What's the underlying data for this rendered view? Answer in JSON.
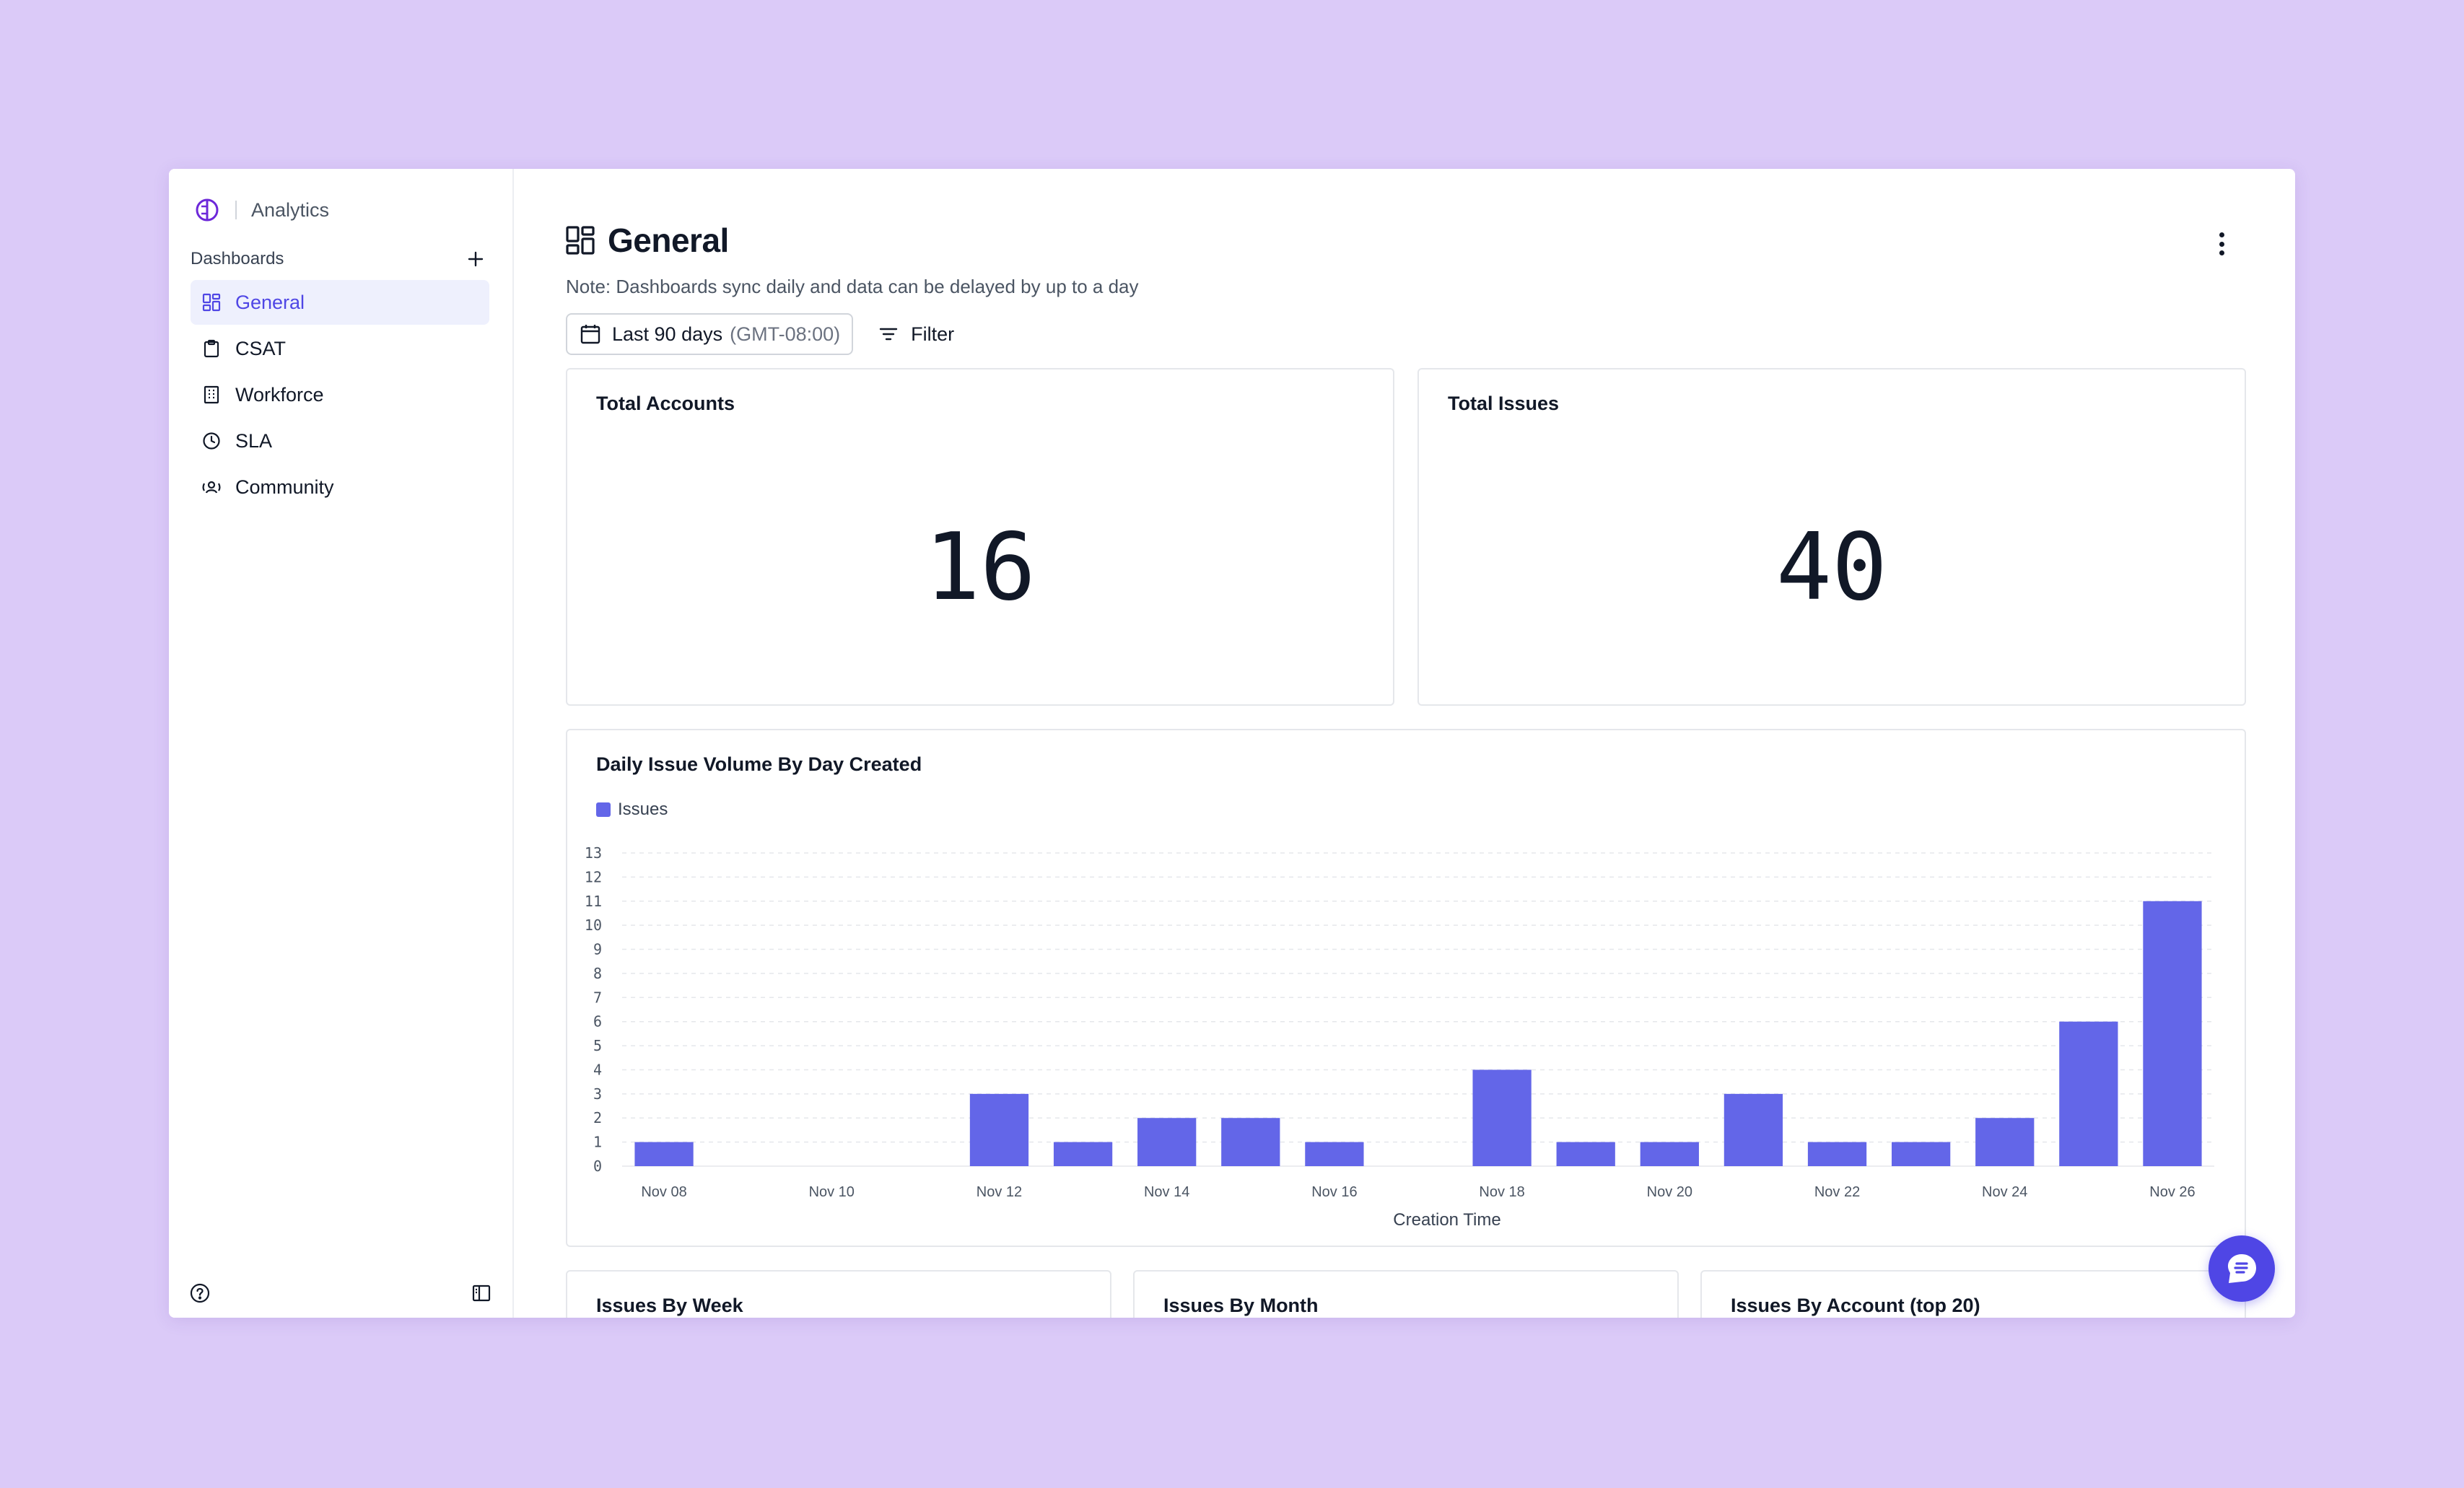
{
  "app": {
    "name": "Analytics"
  },
  "sidebar": {
    "section_label": "Dashboards",
    "items": [
      {
        "label": "General",
        "icon": "dashboard-grid-icon",
        "active": true
      },
      {
        "label": "CSAT",
        "icon": "clipboard-icon",
        "active": false
      },
      {
        "label": "Workforce",
        "icon": "building-icon",
        "active": false
      },
      {
        "label": "SLA",
        "icon": "clock-icon",
        "active": false
      },
      {
        "label": "Community",
        "icon": "community-icon",
        "active": false
      }
    ]
  },
  "page": {
    "title": "General",
    "note": "Note: Dashboards sync daily and data can be delayed by up to a day",
    "date_range": "Last 90 days",
    "timezone": "(GMT-08:00)",
    "filter_label": "Filter"
  },
  "metrics": {
    "total_accounts": {
      "label": "Total Accounts",
      "value": "16"
    },
    "total_issues": {
      "label": "Total Issues",
      "value": "40"
    }
  },
  "chart_data": {
    "type": "bar",
    "title": "Daily Issue Volume By Day Created",
    "xlabel": "Creation Time",
    "ylabel": "",
    "ylim": [
      0,
      13
    ],
    "yticks": [
      0,
      1,
      2,
      3,
      4,
      5,
      6,
      7,
      8,
      9,
      10,
      11,
      12,
      13
    ],
    "categories": [
      "Nov 08",
      "Nov 09",
      "Nov 10",
      "Nov 11",
      "Nov 12",
      "Nov 13",
      "Nov 14",
      "Nov 15",
      "Nov 16",
      "Nov 17",
      "Nov 18",
      "Nov 19",
      "Nov 20",
      "Nov 21",
      "Nov 22",
      "Nov 23",
      "Nov 24",
      "Nov 25",
      "Nov 26"
    ],
    "tick_labels": [
      "Nov 08",
      "Nov 10",
      "Nov 12",
      "Nov 14",
      "Nov 16",
      "Nov 18",
      "Nov 20",
      "Nov 22",
      "Nov 24",
      "Nov 26"
    ],
    "series": [
      {
        "name": "Issues",
        "color": "#6366e8",
        "values": [
          1,
          0,
          0,
          0,
          3,
          1,
          2,
          2,
          1,
          0,
          4,
          1,
          1,
          3,
          1,
          1,
          2,
          6,
          11
        ]
      }
    ],
    "grid": true,
    "legend": "top-left"
  },
  "lower_cards": {
    "by_week": "Issues By Week",
    "by_month": "Issues By Month",
    "by_account": "Issues By Account (top 20)"
  },
  "colors": {
    "accent": "#4f46e5",
    "bar": "#6366e8",
    "background": "#dbcaf8"
  }
}
